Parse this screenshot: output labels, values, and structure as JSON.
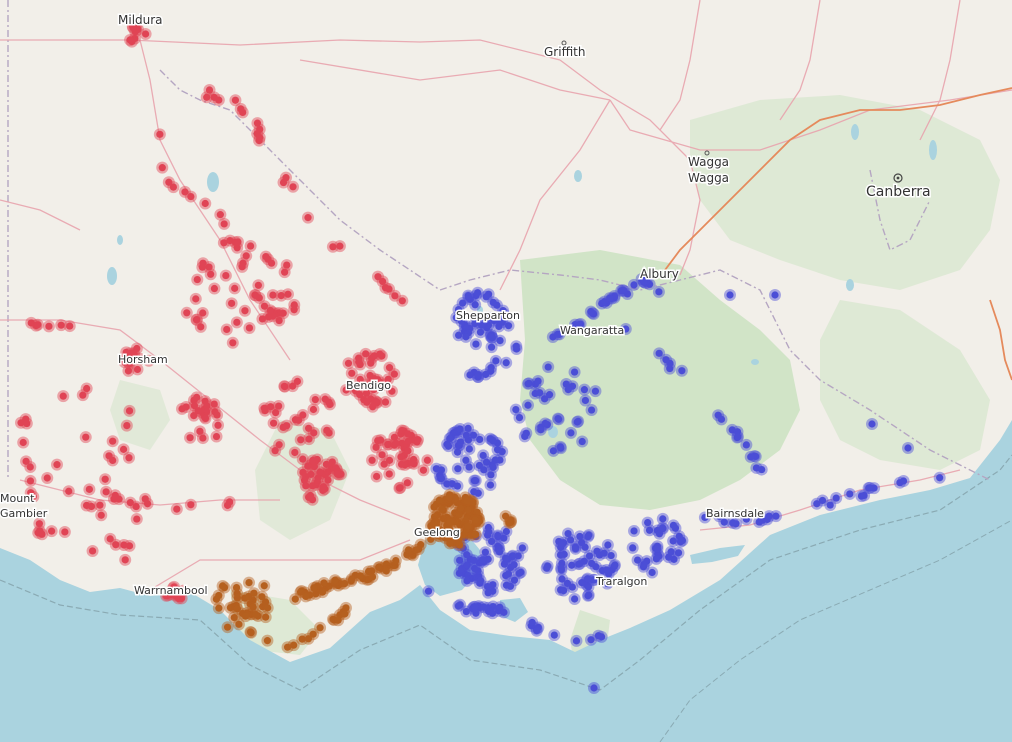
{
  "map": {
    "colors": {
      "land": "#f2efe9",
      "water": "#aad3df",
      "park": "#c8e1bf",
      "state_border": "#b5a6c2",
      "highway": "#e58a5c",
      "road": "#e8a3ad",
      "series_red": "#e04455",
      "series_blue": "#4b4ed6",
      "series_orange": "#b5601f"
    },
    "places": [
      {
        "name": "Mildura"
      },
      {
        "name": "Griffith"
      },
      {
        "name": "Wagga"
      },
      {
        "name": "Wagga"
      },
      {
        "name": "Canberra"
      },
      {
        "name": "Albury"
      },
      {
        "name": "Shepparton"
      },
      {
        "name": "Wangaratta"
      },
      {
        "name": "Horsham"
      },
      {
        "name": "Bendigo"
      },
      {
        "name": "Bairnsdale"
      },
      {
        "name": "Warrnambool"
      },
      {
        "name": "Geelong"
      },
      {
        "name": "Traralgon"
      },
      {
        "name": "Mount"
      },
      {
        "name": "Gambier"
      }
    ]
  }
}
